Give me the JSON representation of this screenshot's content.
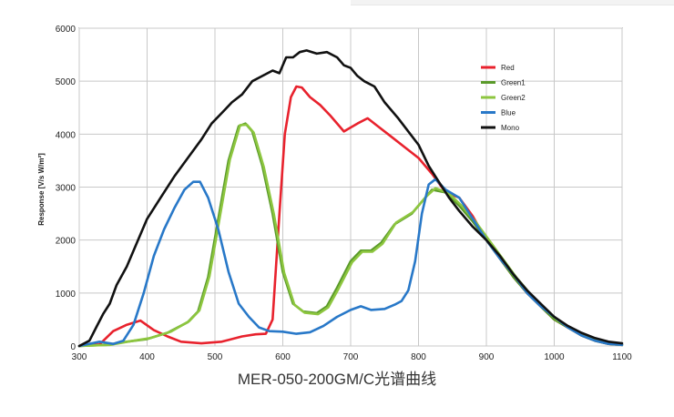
{
  "caption": "MER-050-200GM/C光谱曲线",
  "chart_data": {
    "type": "line",
    "title": "",
    "xlabel": "",
    "ylabel": "Response [V/s W/m²]",
    "xlim": [
      300,
      1100
    ],
    "ylim": [
      0,
      6000
    ],
    "xticks": [
      300,
      400,
      500,
      600,
      700,
      800,
      900,
      1000,
      1100
    ],
    "yticks": [
      0,
      1000,
      2000,
      3000,
      4000,
      5000,
      6000
    ],
    "grid": true,
    "legend_position": "top-right",
    "series": [
      {
        "name": "Red",
        "color": "#e8222d",
        "points": [
          [
            300,
            0
          ],
          [
            330,
            30
          ],
          [
            350,
            280
          ],
          [
            370,
            400
          ],
          [
            390,
            480
          ],
          [
            410,
            300
          ],
          [
            430,
            180
          ],
          [
            450,
            80
          ],
          [
            480,
            50
          ],
          [
            510,
            80
          ],
          [
            540,
            180
          ],
          [
            560,
            220
          ],
          [
            575,
            230
          ],
          [
            585,
            500
          ],
          [
            595,
            2500
          ],
          [
            603,
            4000
          ],
          [
            612,
            4700
          ],
          [
            620,
            4900
          ],
          [
            628,
            4880
          ],
          [
            640,
            4700
          ],
          [
            655,
            4550
          ],
          [
            670,
            4350
          ],
          [
            690,
            4050
          ],
          [
            710,
            4200
          ],
          [
            725,
            4300
          ],
          [
            740,
            4150
          ],
          [
            760,
            3950
          ],
          [
            780,
            3750
          ],
          [
            800,
            3550
          ],
          [
            820,
            3250
          ],
          [
            840,
            2900
          ],
          [
            860,
            2800
          ],
          [
            880,
            2450
          ],
          [
            900,
            2000
          ],
          [
            920,
            1650
          ],
          [
            940,
            1300
          ],
          [
            960,
            1000
          ],
          [
            980,
            750
          ],
          [
            1000,
            500
          ],
          [
            1020,
            350
          ],
          [
            1040,
            200
          ],
          [
            1060,
            100
          ],
          [
            1080,
            40
          ],
          [
            1100,
            20
          ]
        ]
      },
      {
        "name": "Green1",
        "color": "#5a9a2a",
        "points": [
          [
            300,
            0
          ],
          [
            340,
            20
          ],
          [
            370,
            80
          ],
          [
            400,
            130
          ],
          [
            430,
            250
          ],
          [
            460,
            450
          ],
          [
            475,
            650
          ],
          [
            490,
            1300
          ],
          [
            505,
            2400
          ],
          [
            520,
            3500
          ],
          [
            535,
            4150
          ],
          [
            545,
            4200
          ],
          [
            555,
            4050
          ],
          [
            570,
            3400
          ],
          [
            585,
            2500
          ],
          [
            600,
            1400
          ],
          [
            615,
            800
          ],
          [
            630,
            650
          ],
          [
            650,
            620
          ],
          [
            665,
            750
          ],
          [
            680,
            1100
          ],
          [
            700,
            1600
          ],
          [
            715,
            1800
          ],
          [
            730,
            1800
          ],
          [
            745,
            1950
          ],
          [
            765,
            2300
          ],
          [
            790,
            2500
          ],
          [
            810,
            2800
          ],
          [
            820,
            2950
          ],
          [
            840,
            2900
          ],
          [
            860,
            2650
          ],
          [
            880,
            2350
          ],
          [
            900,
            2000
          ],
          [
            920,
            1650
          ],
          [
            940,
            1300
          ],
          [
            960,
            1000
          ],
          [
            980,
            750
          ],
          [
            1000,
            500
          ],
          [
            1020,
            350
          ],
          [
            1040,
            200
          ],
          [
            1060,
            100
          ],
          [
            1080,
            40
          ],
          [
            1100,
            20
          ]
        ]
      },
      {
        "name": "Green2",
        "color": "#8dc63f",
        "points": [
          [
            300,
            0
          ],
          [
            345,
            20
          ],
          [
            375,
            90
          ],
          [
            405,
            150
          ],
          [
            435,
            270
          ],
          [
            462,
            470
          ],
          [
            477,
            670
          ],
          [
            492,
            1320
          ],
          [
            507,
            2420
          ],
          [
            522,
            3520
          ],
          [
            537,
            4170
          ],
          [
            547,
            4180
          ],
          [
            557,
            4030
          ],
          [
            572,
            3380
          ],
          [
            587,
            2480
          ],
          [
            602,
            1380
          ],
          [
            617,
            780
          ],
          [
            632,
            630
          ],
          [
            652,
            600
          ],
          [
            667,
            730
          ],
          [
            682,
            1080
          ],
          [
            702,
            1580
          ],
          [
            717,
            1780
          ],
          [
            732,
            1780
          ],
          [
            747,
            1930
          ],
          [
            767,
            2330
          ],
          [
            792,
            2530
          ],
          [
            812,
            2830
          ],
          [
            825,
            2980
          ],
          [
            845,
            2880
          ],
          [
            865,
            2630
          ],
          [
            885,
            2330
          ],
          [
            905,
            1980
          ],
          [
            925,
            1630
          ],
          [
            945,
            1280
          ],
          [
            965,
            980
          ],
          [
            985,
            730
          ],
          [
            1005,
            480
          ],
          [
            1025,
            330
          ],
          [
            1045,
            180
          ],
          [
            1065,
            90
          ],
          [
            1085,
            35
          ],
          [
            1100,
            20
          ]
        ]
      },
      {
        "name": "Blue",
        "color": "#2878c8",
        "points": [
          [
            300,
            0
          ],
          [
            330,
            80
          ],
          [
            350,
            40
          ],
          [
            365,
            100
          ],
          [
            380,
            400
          ],
          [
            395,
            1000
          ],
          [
            410,
            1700
          ],
          [
            425,
            2200
          ],
          [
            440,
            2600
          ],
          [
            455,
            2950
          ],
          [
            468,
            3100
          ],
          [
            478,
            3100
          ],
          [
            490,
            2800
          ],
          [
            505,
            2200
          ],
          [
            520,
            1400
          ],
          [
            535,
            800
          ],
          [
            550,
            550
          ],
          [
            565,
            350
          ],
          [
            580,
            280
          ],
          [
            600,
            270
          ],
          [
            620,
            230
          ],
          [
            640,
            260
          ],
          [
            660,
            380
          ],
          [
            680,
            550
          ],
          [
            700,
            680
          ],
          [
            715,
            750
          ],
          [
            730,
            680
          ],
          [
            750,
            700
          ],
          [
            765,
            780
          ],
          [
            775,
            850
          ],
          [
            785,
            1050
          ],
          [
            795,
            1600
          ],
          [
            805,
            2500
          ],
          [
            815,
            3050
          ],
          [
            825,
            3150
          ],
          [
            840,
            2950
          ],
          [
            860,
            2800
          ],
          [
            880,
            2400
          ],
          [
            900,
            2000
          ],
          [
            920,
            1650
          ],
          [
            940,
            1350
          ],
          [
            960,
            1000
          ],
          [
            980,
            750
          ],
          [
            1000,
            550
          ],
          [
            1020,
            350
          ],
          [
            1040,
            200
          ],
          [
            1060,
            100
          ],
          [
            1080,
            40
          ],
          [
            1100,
            20
          ]
        ]
      },
      {
        "name": "Mono",
        "color": "#111111",
        "points": [
          [
            300,
            0
          ],
          [
            315,
            100
          ],
          [
            325,
            350
          ],
          [
            335,
            600
          ],
          [
            345,
            800
          ],
          [
            355,
            1150
          ],
          [
            370,
            1500
          ],
          [
            385,
            1950
          ],
          [
            400,
            2400
          ],
          [
            420,
            2800
          ],
          [
            440,
            3200
          ],
          [
            460,
            3550
          ],
          [
            480,
            3900
          ],
          [
            495,
            4200
          ],
          [
            510,
            4400
          ],
          [
            525,
            4600
          ],
          [
            540,
            4750
          ],
          [
            555,
            5000
          ],
          [
            570,
            5100
          ],
          [
            585,
            5200
          ],
          [
            595,
            5150
          ],
          [
            605,
            5450
          ],
          [
            615,
            5450
          ],
          [
            625,
            5550
          ],
          [
            635,
            5580
          ],
          [
            650,
            5520
          ],
          [
            665,
            5550
          ],
          [
            680,
            5450
          ],
          [
            690,
            5300
          ],
          [
            700,
            5250
          ],
          [
            710,
            5100
          ],
          [
            720,
            5000
          ],
          [
            735,
            4900
          ],
          [
            750,
            4600
          ],
          [
            770,
            4300
          ],
          [
            785,
            4050
          ],
          [
            800,
            3800
          ],
          [
            815,
            3400
          ],
          [
            830,
            3100
          ],
          [
            845,
            2800
          ],
          [
            860,
            2550
          ],
          [
            880,
            2250
          ],
          [
            900,
            2000
          ],
          [
            920,
            1700
          ],
          [
            940,
            1350
          ],
          [
            960,
            1050
          ],
          [
            980,
            800
          ],
          [
            1000,
            550
          ],
          [
            1020,
            380
          ],
          [
            1040,
            250
          ],
          [
            1060,
            150
          ],
          [
            1080,
            80
          ],
          [
            1100,
            50
          ]
        ]
      }
    ]
  }
}
